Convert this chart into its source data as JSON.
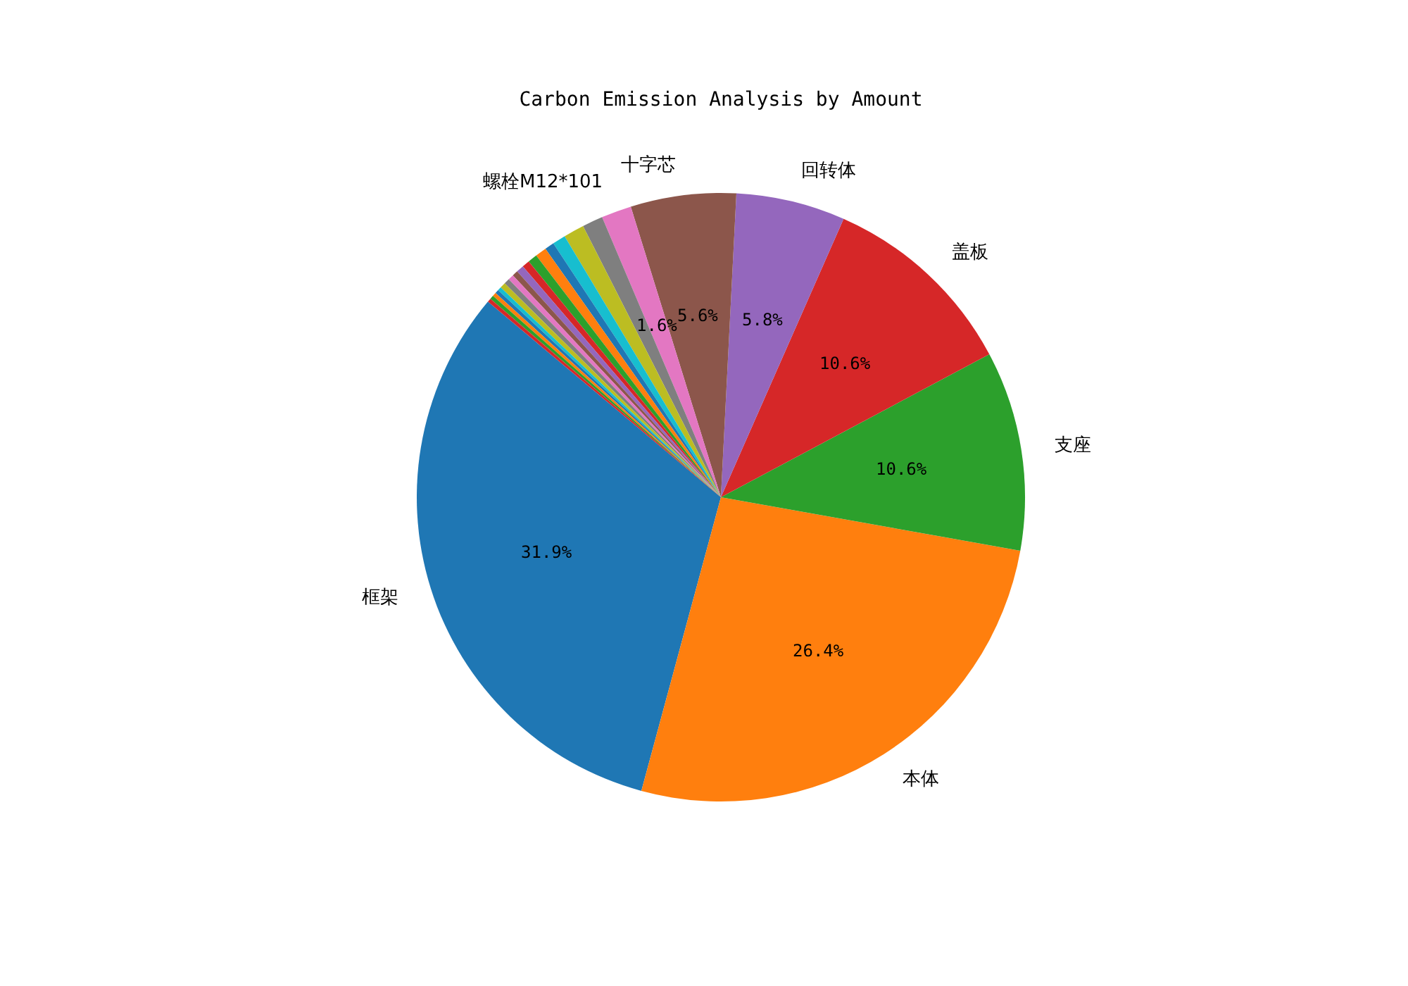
{
  "chart_data": {
    "type": "pie",
    "title": "Carbon Emission Analysis by Amount",
    "categories": [
      "框架",
      "本体",
      "支座",
      "盖板",
      "回转体",
      "十字芯",
      "螺栓M12*101",
      null,
      null,
      null,
      null,
      null,
      null,
      null,
      null,
      null,
      null,
      null,
      null,
      null,
      null,
      null,
      null,
      null
    ],
    "values": [
      31.9,
      26.4,
      10.6,
      10.6,
      5.8,
      5.6,
      1.6,
      1.1,
      1.1,
      0.7,
      0.5,
      0.6,
      0.5,
      0.4,
      0.4,
      0.3,
      0.3,
      0.3,
      0.3,
      0.2,
      0.2,
      0.2,
      0.2,
      0.2
    ],
    "colors": [
      "#1f77b4",
      "#ff7f0e",
      "#2ca02c",
      "#d62728",
      "#9467bd",
      "#8c564b",
      "#e377c2",
      "#7f7f7f",
      "#bcbd22",
      "#17becf",
      "#1f77b4",
      "#ff7f0e",
      "#2ca02c",
      "#d62728",
      "#9467bd",
      "#8c564b",
      "#e377c2",
      "#7f7f7f",
      "#bcbd22",
      "#17becf",
      "#1f77b4",
      "#ff7f0e",
      "#2ca02c",
      "#d62728"
    ],
    "value_labels": [
      "31.9%",
      "26.4%",
      "10.6%",
      "10.6%",
      "5.8%",
      "5.6%",
      "1.6%",
      null,
      null,
      null,
      null,
      null,
      null,
      null,
      null,
      null,
      null,
      null,
      null,
      null,
      null,
      null,
      null,
      null
    ],
    "legend": false
  }
}
